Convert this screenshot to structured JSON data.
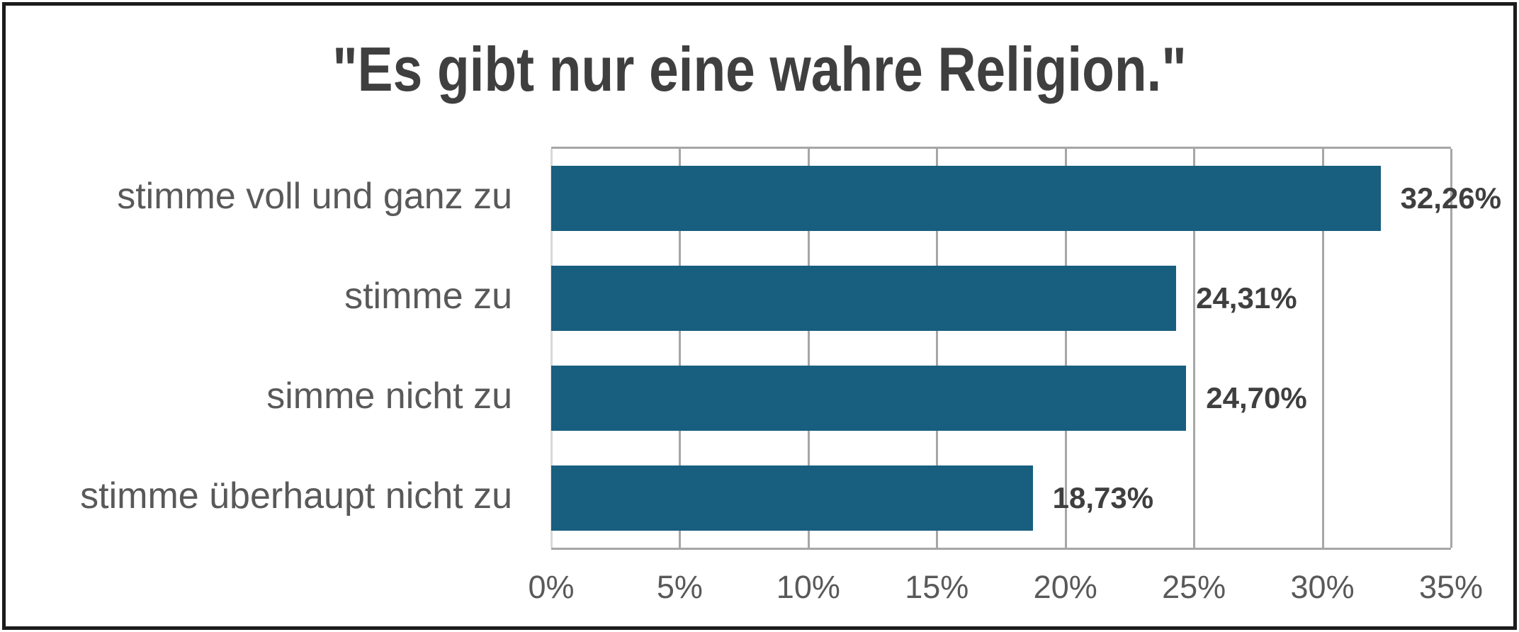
{
  "title": "\"Es gibt nur eine wahre Religion.\"",
  "colors": {
    "bar": "#175e7f",
    "title_text": "#3f3f3f",
    "value_text": "#3f3f3f",
    "axis_text": "#595959",
    "gridline": "#a6a6a6",
    "zero_line": "#d9d9d9",
    "frame": "#1c1c1c",
    "background": "#ffffff"
  },
  "chart_data": {
    "type": "bar",
    "orientation": "horizontal",
    "title": "\"Es gibt nur eine wahre Religion.\"",
    "categories": [
      "stimme voll und ganz zu",
      "stimme zu",
      "simme nicht zu",
      "stimme überhaupt nicht zu"
    ],
    "values": [
      32.26,
      24.31,
      24.7,
      18.73
    ],
    "value_labels": [
      "32,26%",
      "24,31%",
      "24,70%",
      "18,73%"
    ],
    "x_ticks": [
      "0%",
      "5%",
      "10%",
      "15%",
      "20%",
      "25%",
      "30%",
      "35%"
    ],
    "x_tick_values": [
      0,
      5,
      10,
      15,
      20,
      25,
      30,
      35
    ],
    "xlim": [
      0,
      35
    ],
    "xlabel": "",
    "ylabel": "",
    "grid": true,
    "legend": false,
    "value_label_position": "outside-end"
  }
}
